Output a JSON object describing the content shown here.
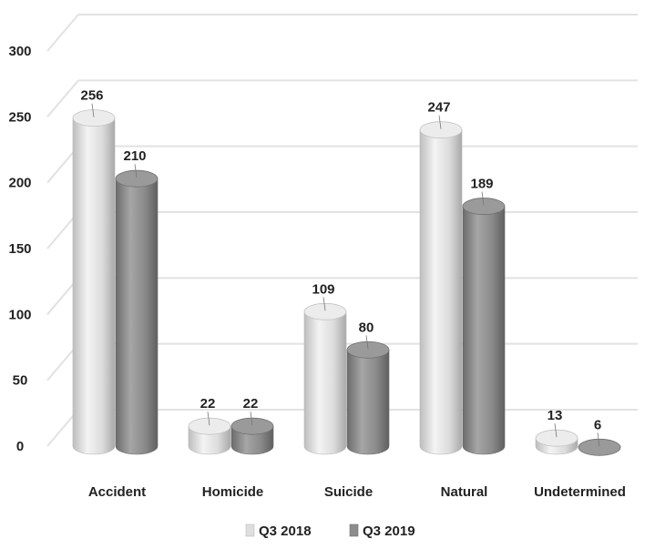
{
  "chart_data": {
    "type": "bar",
    "title": "",
    "xlabel": "",
    "ylabel": "",
    "categories": [
      "Accident",
      "Homicide",
      "Suicide",
      "Natural",
      "Undetermined"
    ],
    "series": [
      {
        "name": "Q3 2018",
        "values": [
          256,
          22,
          109,
          247,
          13
        ],
        "color": "#dedede"
      },
      {
        "name": "Q3 2019",
        "values": [
          210,
          22,
          80,
          189,
          6
        ],
        "color": "#8c8c8c"
      }
    ],
    "ylim": [
      0,
      300
    ],
    "yticks": [
      "0",
      "50",
      "100",
      "150",
      "200",
      "250",
      "300"
    ],
    "grid": true,
    "legend_position": "bottom",
    "data_labels": true,
    "style": "3d-cylinder"
  }
}
